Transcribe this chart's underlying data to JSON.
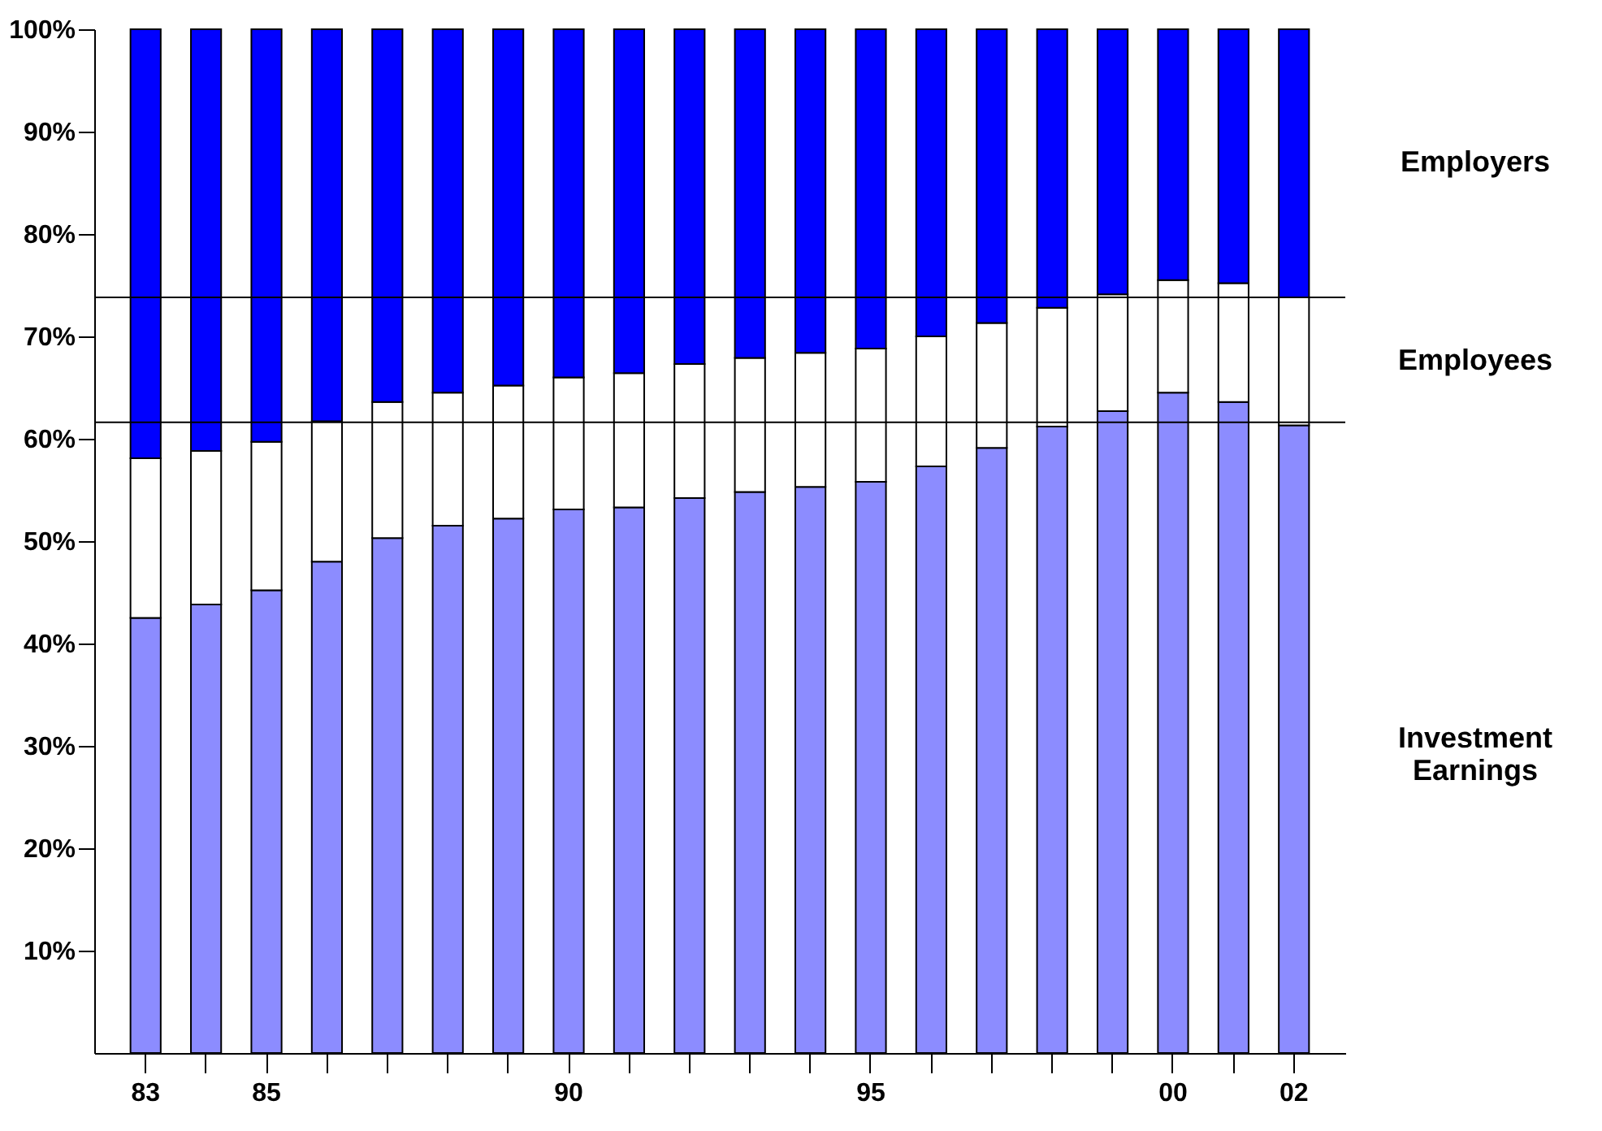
{
  "chart_data": {
    "type": "bar",
    "stacked": true,
    "categories": [
      "83",
      null,
      "85",
      null,
      null,
      null,
      null,
      "90",
      null,
      null,
      null,
      null,
      "95",
      null,
      null,
      null,
      null,
      "00",
      null,
      "02"
    ],
    "series": [
      {
        "name": "Investment Earnings",
        "color": "#8c8cff",
        "values": [
          42.5,
          43.8,
          45.2,
          48.0,
          50.3,
          51.5,
          52.2,
          53.1,
          53.3,
          54.2,
          54.8,
          55.3,
          55.8,
          57.3,
          59.1,
          61.2,
          62.7,
          64.5,
          63.6,
          61.3
        ]
      },
      {
        "name": "Employees",
        "color": "#ffffff",
        "values": [
          15.6,
          15.0,
          14.5,
          13.7,
          13.3,
          13.0,
          13.0,
          12.9,
          13.1,
          13.1,
          13.1,
          13.1,
          13.0,
          12.7,
          12.2,
          11.6,
          11.4,
          11.0,
          11.6,
          12.5
        ]
      },
      {
        "name": "Employers",
        "color": "#0000ff",
        "values": [
          41.9,
          41.2,
          40.3,
          38.3,
          36.4,
          35.5,
          34.8,
          34.0,
          33.6,
          32.7,
          32.1,
          31.6,
          31.2,
          30.0,
          28.7,
          27.2,
          25.9,
          24.5,
          24.8,
          26.2
        ]
      }
    ],
    "ylim": [
      0,
      100
    ],
    "yticks": [
      {
        "value": 10,
        "label": "10%"
      },
      {
        "value": 20,
        "label": "20%"
      },
      {
        "value": 30,
        "label": "30%"
      },
      {
        "value": 40,
        "label": "40%"
      },
      {
        "value": 50,
        "label": "50%"
      },
      {
        "value": 60,
        "label": "60%"
      },
      {
        "value": 70,
        "label": "70%"
      },
      {
        "value": 80,
        "label": "80%"
      },
      {
        "value": 90,
        "label": "90%"
      },
      {
        "value": 100,
        "label": "100%"
      }
    ],
    "ref_lines": [
      {
        "axis": "y",
        "value": 73.8,
        "color": "#000000"
      },
      {
        "axis": "y",
        "value": 61.6,
        "color": "#000000"
      }
    ],
    "grid": false,
    "legend": false
  }
}
